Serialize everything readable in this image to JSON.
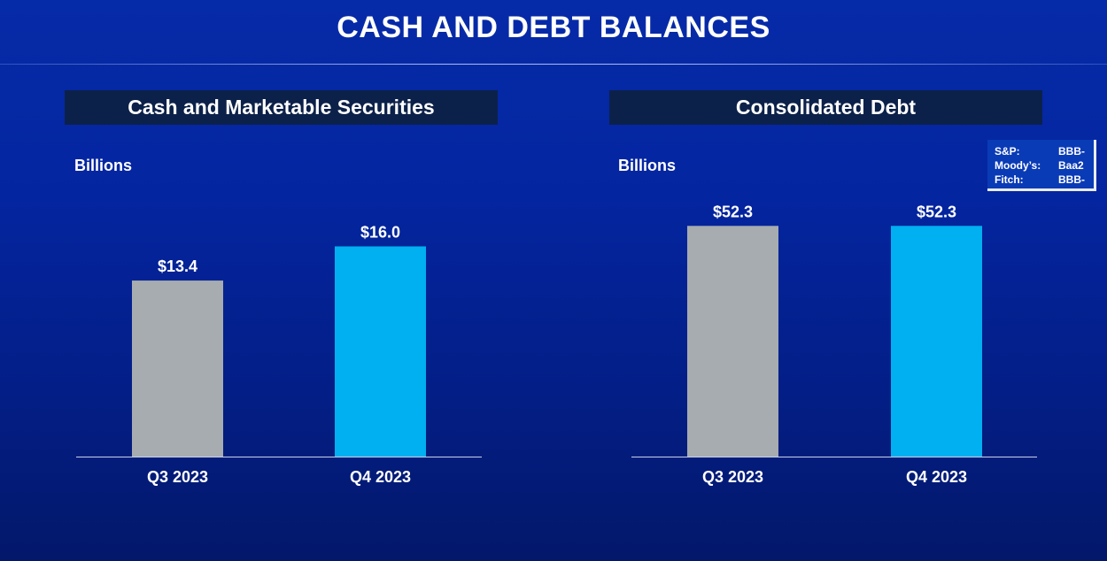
{
  "title": "CASH AND DEBT BALANCES",
  "ratings": [
    {
      "agency": "S&P:",
      "rating": "BBB-"
    },
    {
      "agency": "Moody’s:",
      "rating": "Baa2"
    },
    {
      "agency": "Fitch:",
      "rating": "BBB-"
    }
  ],
  "colors": {
    "prior_bar": "#a6acaf",
    "current_bar": "#00b0f0",
    "header_bg": "#0c2149"
  },
  "chart_data": [
    {
      "type": "bar",
      "title": "Cash and Marketable Securities",
      "ylabel": "Billions",
      "categories": [
        "Q3 2023",
        "Q4 2023"
      ],
      "values": [
        13.4,
        16.0
      ],
      "data_labels": [
        "$13.4",
        "$16.0"
      ],
      "ylim": [
        0,
        22.9
      ],
      "grid": false,
      "legend": "none"
    },
    {
      "type": "bar",
      "title": "Consolidated Debt",
      "ylabel": "Billions",
      "categories": [
        "Q3 2023",
        "Q4 2023"
      ],
      "values": [
        52.3,
        52.3
      ],
      "data_labels": [
        "$52.3",
        "$52.3"
      ],
      "ylim": [
        0,
        68.2
      ],
      "grid": false,
      "legend": "none"
    }
  ]
}
